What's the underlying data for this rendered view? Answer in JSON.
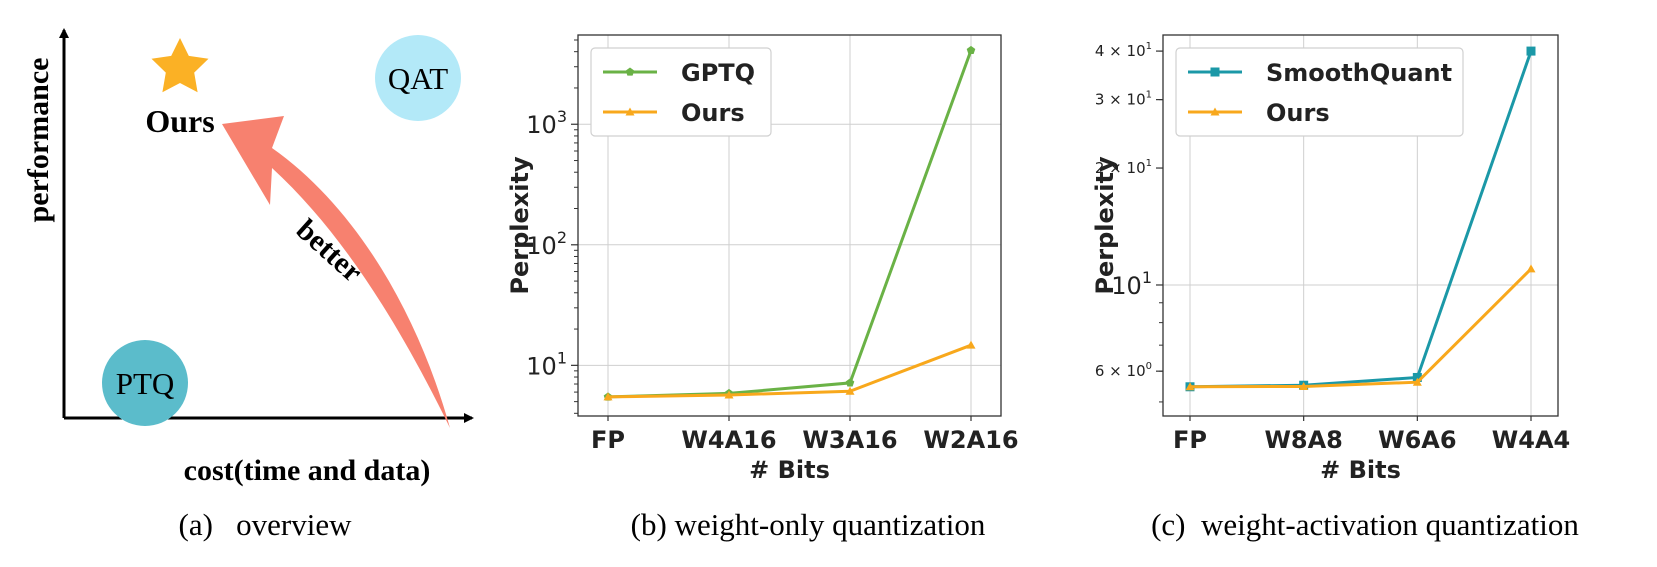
{
  "overview": {
    "ylabel": "performance",
    "xlabel": "cost(time and data)",
    "ours_label": "Ours",
    "qat_label": "QAT",
    "ptq_label": "PTQ",
    "arrow_label": "better",
    "star_color": "#FBB125",
    "arrow_color": "#F7816F",
    "qat_color": "#B3E9F8",
    "ptq_color": "#5BBCCB",
    "icons": [
      "star-icon",
      "curved-arrow-icon"
    ]
  },
  "captions": {
    "a": "(a)   overview",
    "b": "(b) weight-only quantization",
    "c": "(c)  weight-activation quantization"
  },
  "chart_data": [
    {
      "type": "line",
      "title": "",
      "xlabel": "# Bits",
      "ylabel": "Perplexity",
      "yscale": "log",
      "categories": [
        "FP",
        "W4A16",
        "W3A16",
        "W2A16"
      ],
      "ylim": [
        3.8,
        5500
      ],
      "yticks": [
        {
          "value": 10,
          "base": "10",
          "exp": "1"
        },
        {
          "value": 100,
          "base": "10",
          "exp": "2"
        },
        {
          "value": 1000,
          "base": "10",
          "exp": "3"
        }
      ],
      "grid": true,
      "legend_position": "top-left",
      "series": [
        {
          "name": "GPTQ",
          "color": "#6AB246",
          "marker": "pentagon",
          "values": [
            5.47,
            5.85,
            7.15,
            4100
          ]
        },
        {
          "name": "Ours",
          "color": "#F8A81C",
          "marker": "triangle",
          "values": [
            5.47,
            5.68,
            6.1,
            14.7
          ]
        }
      ]
    },
    {
      "type": "line",
      "title": "",
      "xlabel": "# Bits",
      "ylabel": "Perplexity",
      "yscale": "log",
      "categories": [
        "FP",
        "W8A8",
        "W6A6",
        "W4A4"
      ],
      "ylim": [
        4.6,
        44
      ],
      "yticks": [
        {
          "value": 6,
          "base": "6 × 10",
          "exp": "0",
          "small": true
        },
        {
          "value": 10,
          "base": "10",
          "exp": "1",
          "small": false
        },
        {
          "value": 20,
          "base": "2 × 10",
          "exp": "1",
          "small": true
        },
        {
          "value": 30,
          "base": "3 × 10",
          "exp": "1",
          "small": true
        },
        {
          "value": 40,
          "base": "4 × 10",
          "exp": "1",
          "small": true
        }
      ],
      "grid": true,
      "legend_position": "top-left",
      "series": [
        {
          "name": "SmoothQuant",
          "color": "#1B98A7",
          "marker": "square",
          "values": [
            5.47,
            5.52,
            5.78,
            40
          ]
        },
        {
          "name": "Ours",
          "color": "#F8A81C",
          "marker": "triangle",
          "values": [
            5.47,
            5.48,
            5.62,
            11
          ]
        }
      ]
    }
  ]
}
